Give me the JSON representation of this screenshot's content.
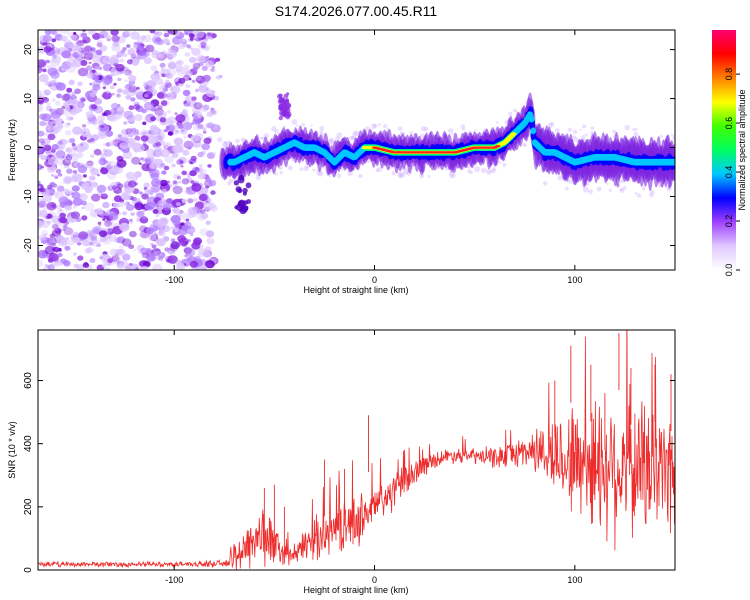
{
  "chart_data": [
    {
      "type": "heatmap",
      "title": "S174.2026.077.00.45.R11",
      "xlabel": "Height of straight line (km)",
      "ylabel": "Frequency (Hz)",
      "xlim": [
        -168,
        150
      ],
      "ylim": [
        -25,
        24
      ],
      "xticks": [
        -100,
        0,
        100
      ],
      "yticks": [
        20,
        10,
        0,
        -10,
        -20
      ],
      "colorbar": {
        "label": "Normalized spectral amplitude",
        "range": [
          0,
          0.98
        ],
        "ticks": [
          "0.0",
          "0.2",
          "0.4",
          "0.6",
          "0.8"
        ],
        "colors": [
          "#ffffff",
          "#d9b3ff",
          "#8a2be2",
          "#0000ff",
          "#00c0ff",
          "#00ff80",
          "#40ff00",
          "#ffff00",
          "#ff8000",
          "#ff0000",
          "#ff0060"
        ]
      },
      "ridge": {
        "x": [
          -70,
          -65,
          -60,
          -55,
          -50,
          -45,
          -40,
          -35,
          -30,
          -25,
          -20,
          -15,
          -10,
          -5,
          0,
          10,
          20,
          30,
          40,
          50,
          60,
          65,
          70,
          75,
          78,
          80,
          85,
          90,
          100,
          110,
          120,
          130,
          140,
          150
        ],
        "y": [
          -3,
          -2,
          -1,
          -2,
          -1,
          0,
          1,
          0,
          0,
          -1,
          -3,
          -1,
          -2,
          0,
          0,
          -1,
          -1,
          -1,
          -1,
          0,
          0,
          1,
          3,
          5,
          7,
          1,
          -1,
          -1,
          -3,
          -2,
          -2,
          -3,
          -3,
          -3
        ]
      },
      "noise_region": [
        -168,
        -78
      ],
      "spur": {
        "x": -45,
        "y": [
          6,
          11
        ]
      }
    },
    {
      "type": "line",
      "xlabel": "Height of straight line (km)",
      "ylabel": "SNR (10 * v/v)",
      "xlim": [
        -168,
        150
      ],
      "ylim": [
        0,
        760
      ],
      "xticks": [
        -100,
        0,
        100
      ],
      "yticks": [
        0,
        200,
        400,
        600
      ],
      "series": [
        {
          "name": "SNR",
          "color": "#ee2c2c",
          "envelope": {
            "x": [
              -168,
              -100,
              -75,
              -70,
              -60,
              -55,
              -50,
              -45,
              -40,
              -35,
              -30,
              -20,
              -10,
              0,
              10,
              20,
              30,
              40,
              50,
              60,
              70,
              80,
              90,
              100,
              110,
              120,
              130,
              140,
              150
            ],
            "base": [
              18,
              18,
              20,
              40,
              100,
              110,
              80,
              50,
              40,
              80,
              100,
              130,
              150,
              200,
              250,
              310,
              350,
              365,
              360,
              355,
              370,
              380,
              360,
              350,
              340,
              330,
              330,
              320,
              320
            ],
            "spread": [
              10,
              10,
              12,
              60,
              110,
              120,
              80,
              40,
              30,
              60,
              80,
              90,
              100,
              80,
              70,
              50,
              30,
              30,
              30,
              40,
              50,
              80,
              150,
              220,
              260,
              280,
              270,
              250,
              240
            ]
          },
          "spikes": [
            [
              -55,
              260
            ],
            [
              -50,
              270
            ],
            [
              -45,
              200
            ],
            [
              -25,
              350
            ],
            [
              -15,
              320
            ],
            [
              -3,
              490
            ],
            [
              90,
              600
            ],
            [
              98,
              710
            ],
            [
              108,
              650
            ],
            [
              115,
              560
            ],
            [
              122,
              750
            ],
            [
              128,
              640
            ],
            [
              140,
              650
            ],
            [
              148,
              620
            ]
          ]
        }
      ]
    }
  ]
}
